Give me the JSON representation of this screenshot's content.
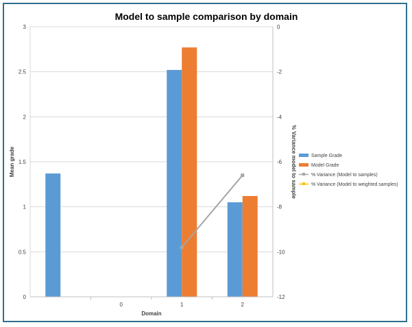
{
  "chart_data": {
    "type": "bar",
    "title": "Model to sample comparison by domain",
    "xlabel": "Domain",
    "ylabel": "Mean grade",
    "y2label": "% Variance model to sample",
    "categories": [
      "",
      "0",
      "1",
      "2"
    ],
    "ylim": [
      0,
      3
    ],
    "y_ticks": [
      "0",
      "0.5",
      "1",
      "1.5",
      "2",
      "2.5",
      "3"
    ],
    "y2lim": [
      -12,
      0
    ],
    "y2_ticks": [
      "-12",
      "-10",
      "-8",
      "-6",
      "-4",
      "-2",
      "0"
    ],
    "grid": true,
    "legend_position": "right",
    "series": [
      {
        "name": "Sample Grade",
        "kind": "bar",
        "axis": "left",
        "color": "#5b9bd5",
        "values": [
          1.37,
          null,
          2.52,
          1.05
        ]
      },
      {
        "name": "Model Grade",
        "kind": "bar",
        "axis": "left",
        "color": "#ed7d31",
        "values": [
          null,
          null,
          2.77,
          1.12
        ]
      },
      {
        "name": "% Variance (Model to samples)",
        "kind": "line",
        "axis": "right",
        "color": "#a5a5a5",
        "values": [
          null,
          null,
          -9.8,
          -6.6
        ]
      },
      {
        "name": "% Variance (Model to weighted samples)",
        "kind": "line",
        "axis": "right",
        "color": "#ffc000",
        "values": [
          null,
          null,
          null,
          null
        ]
      }
    ]
  }
}
